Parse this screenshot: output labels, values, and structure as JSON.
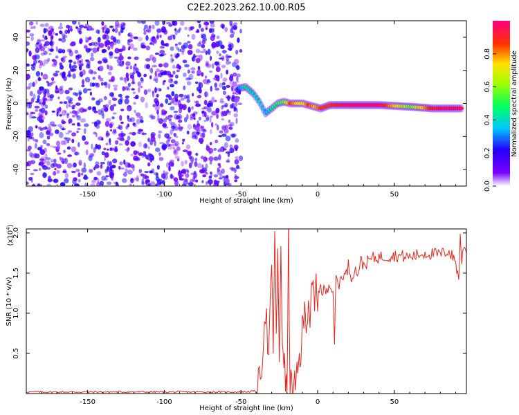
{
  "title": "C2E2.2023.262.10.00.R05",
  "chart_data": [
    {
      "type": "heatmap",
      "xlabel": "Height of straight line (km)",
      "ylabel": "Frequency (Hz)",
      "xlim": [
        -190,
        97
      ],
      "ylim": [
        -50,
        50
      ],
      "xticks": [
        -150,
        -100,
        -50,
        0,
        50
      ],
      "yticks": [
        -40,
        -20,
        0,
        20,
        40
      ],
      "noise_region": {
        "x_range": [
          -190,
          -50
        ],
        "y_range": [
          -50,
          50
        ],
        "amplitude": [
          0.05,
          0.25
        ]
      },
      "signal_track": {
        "x": [
          -52,
          -47,
          -42,
          -38,
          -34,
          -30,
          -26,
          -22,
          -18,
          -14,
          -10,
          -6,
          -2,
          2,
          8,
          20,
          40,
          60,
          75,
          85,
          95
        ],
        "frequency": [
          9,
          10,
          6,
          1,
          -6,
          -3,
          0,
          1,
          0,
          0,
          0,
          -1,
          -2,
          -3,
          -1,
          -1,
          -1,
          -2,
          -3,
          -3,
          -3
        ],
        "amplitude": [
          0.25,
          0.45,
          0.4,
          0.4,
          0.35,
          0.45,
          0.5,
          0.55,
          0.85,
          0.75,
          0.7,
          0.85,
          0.75,
          0.85,
          0.85,
          0.95,
          0.95,
          0.55,
          0.9,
          0.95,
          0.95
        ]
      },
      "colorbar": {
        "label": "Normalized spectral amplitude",
        "range": [
          0,
          1
        ],
        "ticks": [
          "0.0",
          "0.2",
          "0.4",
          "0.6",
          "0.8"
        ]
      }
    },
    {
      "type": "line",
      "xlabel": "Height of straight line (km)",
      "ylabel": "SNR (10 * v/v)",
      "yscale_label": "(x10",
      "yscale_exp": "4",
      "yscale_close": ")",
      "xlim": [
        -190,
        97
      ],
      "ylim": [
        0,
        2.05
      ],
      "xticks": [
        -150,
        -100,
        -50,
        0,
        50
      ],
      "yticks": [
        "0.5",
        "1.0",
        "1.5",
        "2.0"
      ],
      "series": [
        {
          "color": "#e8231c",
          "x": [
            -190,
            -150,
            -100,
            -50,
            -40,
            -38,
            -36,
            -34,
            -32,
            -30,
            -29,
            -28,
            -27,
            -26,
            -25,
            -24,
            -23,
            -22,
            -21,
            -20,
            -19,
            -18,
            -17,
            -16,
            -15,
            -14,
            -13,
            -12,
            -11,
            -10,
            -9,
            -8,
            -7,
            -6,
            -5,
            -4,
            -3,
            -2,
            -1,
            0,
            1,
            2,
            3,
            4,
            6,
            8,
            10,
            11,
            12,
            14,
            16,
            18,
            20,
            22,
            24,
            26,
            28,
            30,
            35,
            40,
            50,
            60,
            70,
            80,
            85,
            90,
            92,
            93,
            94,
            95,
            97
          ],
          "y": [
            0.02,
            0.02,
            0.02,
            0.02,
            0.03,
            0.1,
            0.55,
            1.1,
            0.4,
            1.5,
            0.6,
            1.95,
            0.8,
            1.8,
            0.2,
            1.85,
            0.7,
            0.5,
            0.1,
            0.0,
            1.95,
            0.15,
            0.05,
            0.0,
            0.1,
            0.05,
            0.25,
            0.4,
            0.55,
            0.75,
            0.9,
            1.1,
            0.9,
            1.2,
            0.95,
            1.15,
            1.3,
            1.05,
            1.35,
            1.1,
            1.3,
            1.4,
            1.2,
            1.3,
            1.25,
            1.4,
            1.3,
            0.65,
            1.45,
            1.35,
            1.5,
            1.45,
            1.6,
            1.45,
            1.55,
            1.5,
            1.65,
            1.6,
            1.68,
            1.7,
            1.72,
            1.7,
            1.75,
            1.73,
            1.78,
            1.65,
            1.4,
            2.0,
            1.6,
            1.85,
            1.75
          ]
        }
      ]
    }
  ]
}
